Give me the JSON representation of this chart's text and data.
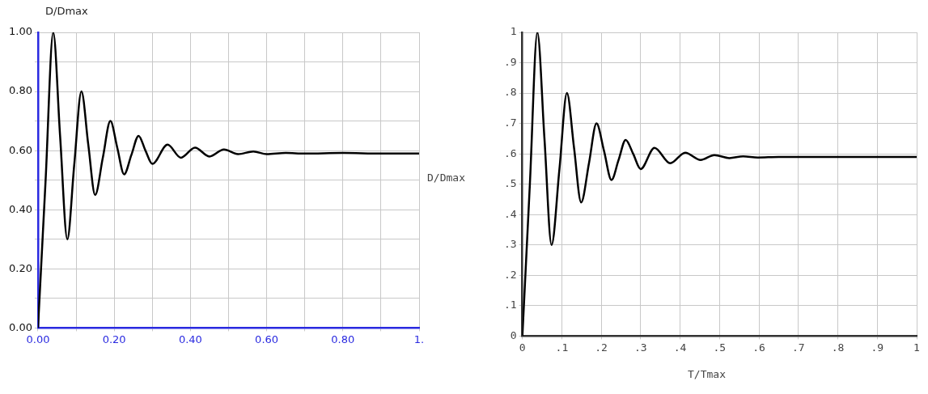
{
  "chart_data": [
    {
      "type": "line",
      "ylabel": "D/Dmax",
      "x": [
        0,
        0.02,
        0.04,
        0.058,
        0.077,
        0.095,
        0.114,
        0.132,
        0.15,
        0.17,
        0.19,
        0.208,
        0.226,
        0.245,
        0.264,
        0.282,
        0.3,
        0.34,
        0.375,
        0.412,
        0.45,
        0.488,
        0.525,
        0.565,
        0.6,
        0.65,
        0.7,
        0.8,
        0.9,
        1.0
      ],
      "series": [
        {
          "color": "#000000",
          "values": [
            0,
            0.5,
            1.0,
            0.65,
            0.3,
            0.55,
            0.8,
            0.62,
            0.45,
            0.575,
            0.7,
            0.61,
            0.52,
            0.585,
            0.65,
            0.6,
            0.555,
            0.62,
            0.576,
            0.61,
            0.58,
            0.604,
            0.588,
            0.597,
            0.588,
            0.592,
            0.59,
            0.592,
            0.59,
            0.59
          ]
        }
      ],
      "xlim": [
        0,
        1
      ],
      "ylim": [
        0,
        1
      ],
      "xticks": [
        {
          "value": 0,
          "label": "0.00"
        },
        {
          "value": 0.1,
          "label": null
        },
        {
          "value": 0.2,
          "label": "0.20"
        },
        {
          "value": 0.3,
          "label": null
        },
        {
          "value": 0.4,
          "label": "0.40"
        },
        {
          "value": 0.5,
          "label": null
        },
        {
          "value": 0.6,
          "label": "0.60"
        },
        {
          "value": 0.7,
          "label": null
        },
        {
          "value": 0.8,
          "label": "0.80"
        },
        {
          "value": 0.9,
          "label": null
        },
        {
          "value": 1,
          "label": "1."
        }
      ],
      "yticks": [
        {
          "value": 0,
          "label": "0.00"
        },
        {
          "value": 0.1,
          "label": null
        },
        {
          "value": 0.2,
          "label": "0.20"
        },
        {
          "value": 0.3,
          "label": null
        },
        {
          "value": 0.4,
          "label": "0.40"
        },
        {
          "value": 0.5,
          "label": null
        },
        {
          "value": 0.6,
          "label": "0.60"
        },
        {
          "value": 0.7,
          "label": null
        },
        {
          "value": 0.8,
          "label": "0.80"
        },
        {
          "value": 0.9,
          "label": null
        },
        {
          "value": 1,
          "label": "1.00"
        }
      ],
      "grid": true,
      "legend": false,
      "marker": "none",
      "line_style": "solid"
    },
    {
      "type": "line",
      "xlabel": "T/Tmax",
      "ylabel": "D/Dmax",
      "x": [
        0,
        0.019,
        0.038,
        0.056,
        0.074,
        0.094,
        0.113,
        0.131,
        0.149,
        0.169,
        0.188,
        0.207,
        0.226,
        0.244,
        0.262,
        0.281,
        0.3,
        0.335,
        0.375,
        0.413,
        0.452,
        0.487,
        0.525,
        0.56,
        0.597,
        0.65,
        0.7,
        0.8,
        0.9,
        1.0
      ],
      "series": [
        {
          "color": "#000000",
          "values": [
            0,
            0.5,
            1.0,
            0.65,
            0.3,
            0.55,
            0.8,
            0.62,
            0.44,
            0.57,
            0.7,
            0.61,
            0.514,
            0.58,
            0.646,
            0.6,
            0.55,
            0.62,
            0.569,
            0.604,
            0.58,
            0.596,
            0.586,
            0.592,
            0.588,
            0.59,
            0.59,
            0.59,
            0.59,
            0.59
          ]
        }
      ],
      "xlim": [
        0,
        1
      ],
      "ylim": [
        0,
        1
      ],
      "xticks": [
        0,
        {
          "value": 0.1,
          "label": ".1"
        },
        {
          "value": 0.2,
          "label": ".2"
        },
        {
          "value": 0.3,
          "label": ".3"
        },
        {
          "value": 0.4,
          "label": ".4"
        },
        {
          "value": 0.5,
          "label": ".5"
        },
        {
          "value": 0.6,
          "label": ".6"
        },
        {
          "value": 0.7,
          "label": ".7"
        },
        {
          "value": 0.8,
          "label": ".8"
        },
        {
          "value": 0.9,
          "label": ".9"
        },
        1
      ],
      "yticks": [
        0,
        {
          "value": 0.1,
          "label": ".1"
        },
        {
          "value": 0.2,
          "label": ".2"
        },
        {
          "value": 0.3,
          "label": ".3"
        },
        {
          "value": 0.4,
          "label": ".4"
        },
        {
          "value": 0.5,
          "label": ".5"
        },
        {
          "value": 0.6,
          "label": ".6"
        },
        {
          "value": 0.7,
          "label": ".7"
        },
        {
          "value": 0.8,
          "label": ".8"
        },
        {
          "value": 0.9,
          "label": ".9"
        },
        1
      ],
      "grid": true,
      "legend": false,
      "marker": "none",
      "line_style": "solid"
    }
  ]
}
